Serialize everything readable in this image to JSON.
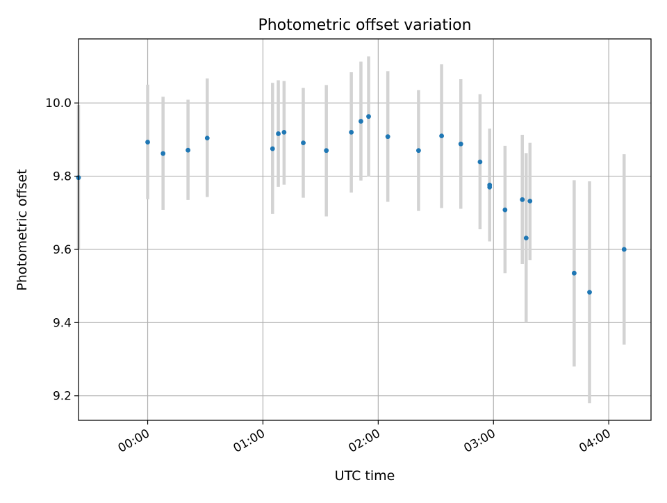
{
  "chart_data": {
    "type": "scatter",
    "title": "Photometric offset variation",
    "xlabel": "UTC time",
    "ylabel": "Photometric offset",
    "x_unit": "UTC time of day (HH:MM)",
    "xlim": [
      "-00:36",
      "04:22"
    ],
    "ylim": [
      9.133,
      10.175
    ],
    "xticks": [
      "00:00",
      "01:00",
      "02:00",
      "03:00",
      "04:00"
    ],
    "yticks": [
      9.2,
      9.4,
      9.6,
      9.8,
      10.0
    ],
    "ytick_labels": [
      "9.2",
      "9.4",
      "9.6",
      "9.8",
      "10.0"
    ],
    "grid": true,
    "legend": "none",
    "colors": {
      "points": "#1f77b4",
      "error_bars": "#d3d3d3",
      "grid": "#b0b0b0"
    },
    "points": [
      {
        "t": "-00:36",
        "y": 9.796,
        "lo": 9.6,
        "hi": 9.995
      },
      {
        "t": "00:00",
        "y": 9.893,
        "lo": 9.737,
        "hi": 10.05
      },
      {
        "t": "00:08",
        "y": 9.862,
        "lo": 9.708,
        "hi": 10.017
      },
      {
        "t": "00:21",
        "y": 9.871,
        "lo": 9.735,
        "hi": 10.009
      },
      {
        "t": "00:31",
        "y": 9.904,
        "lo": 9.743,
        "hi": 10.067
      },
      {
        "t": "01:05",
        "y": 9.875,
        "lo": 9.697,
        "hi": 10.055
      },
      {
        "t": "01:08",
        "y": 9.916,
        "lo": 9.771,
        "hi": 10.062
      },
      {
        "t": "01:11",
        "y": 9.92,
        "lo": 9.777,
        "hi": 10.06
      },
      {
        "t": "01:21",
        "y": 9.891,
        "lo": 9.741,
        "hi": 10.041
      },
      {
        "t": "01:33",
        "y": 9.87,
        "lo": 9.69,
        "hi": 10.049
      },
      {
        "t": "01:46",
        "y": 9.92,
        "lo": 9.755,
        "hi": 10.084
      },
      {
        "t": "01:51",
        "y": 9.95,
        "lo": 9.788,
        "hi": 10.113
      },
      {
        "t": "01:55",
        "y": 9.963,
        "lo": 9.799,
        "hi": 10.127
      },
      {
        "t": "02:05",
        "y": 9.908,
        "lo": 9.73,
        "hi": 10.087
      },
      {
        "t": "02:21",
        "y": 9.87,
        "lo": 9.705,
        "hi": 10.035
      },
      {
        "t": "02:33",
        "y": 9.91,
        "lo": 9.713,
        "hi": 10.106
      },
      {
        "t": "02:43",
        "y": 9.888,
        "lo": 9.711,
        "hi": 10.065
      },
      {
        "t": "02:53",
        "y": 9.839,
        "lo": 9.655,
        "hi": 10.024
      },
      {
        "t": "02:58",
        "y": 9.776,
        "lo": 9.622,
        "hi": 9.93
      },
      {
        "t": "02:58",
        "y": 9.77,
        "lo": 9.622,
        "hi": 9.92
      },
      {
        "t": "03:06",
        "y": 9.708,
        "lo": 9.535,
        "hi": 9.883
      },
      {
        "t": "03:15",
        "y": 9.736,
        "lo": 9.56,
        "hi": 9.913
      },
      {
        "t": "03:17",
        "y": 9.631,
        "lo": 9.4,
        "hi": 9.863
      },
      {
        "t": "03:19",
        "y": 9.732,
        "lo": 9.571,
        "hi": 9.891
      },
      {
        "t": "03:42",
        "y": 9.535,
        "lo": 9.28,
        "hi": 9.789
      },
      {
        "t": "03:50",
        "y": 9.483,
        "lo": 9.18,
        "hi": 9.786
      },
      {
        "t": "04:08",
        "y": 9.6,
        "lo": 9.34,
        "hi": 9.86
      }
    ]
  }
}
